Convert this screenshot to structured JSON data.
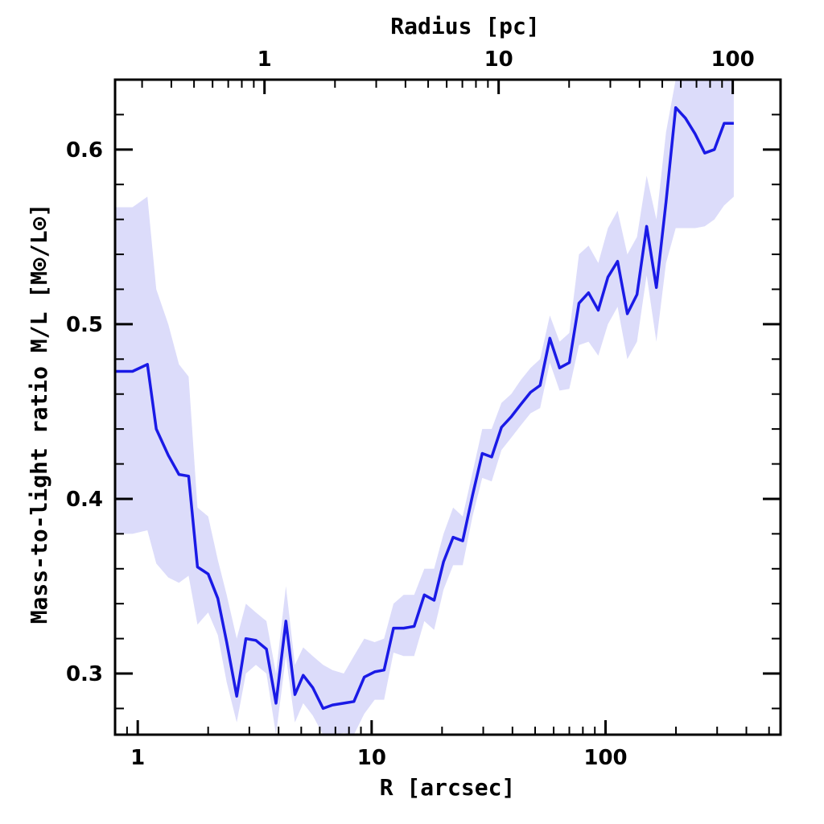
{
  "chart_data": {
    "type": "line",
    "xlabel": "R [arcsec]",
    "ylabel": "Mass-to-light ratio M/L [M⊙/L⊙]",
    "top_xlabel": "Radius [pc]",
    "xscale": "log",
    "xlim": [
      0.8,
      560
    ],
    "ylim": [
      0.265,
      0.64
    ],
    "top_xlim": [
      0.23,
      160
    ],
    "x_ticks": [
      1,
      10,
      100
    ],
    "x_tick_labels": [
      "1",
      "10",
      "100"
    ],
    "top_x_ticks": [
      1,
      10,
      100
    ],
    "top_x_tick_labels": [
      "1",
      "10",
      "100"
    ],
    "y_ticks": [
      0.3,
      0.4,
      0.5,
      0.6
    ],
    "y_tick_labels": [
      "0.3",
      "0.4",
      "0.5",
      "0.6"
    ],
    "colors": {
      "line": "#1a1ae6",
      "band": "#dcdcfa"
    },
    "series": [
      {
        "name": "M/L",
        "x": [
          0.8,
          0.95,
          1.1,
          1.2,
          1.35,
          1.5,
          1.65,
          1.8,
          2.0,
          2.2,
          2.4,
          2.65,
          2.9,
          3.2,
          3.55,
          3.9,
          4.3,
          4.7,
          5.1,
          5.6,
          6.2,
          6.8,
          7.6,
          8.4,
          9.3,
          10.3,
          11.3,
          12.4,
          13.7,
          15.2,
          16.8,
          18.5,
          20.3,
          22.3,
          24.5,
          27.0,
          29.7,
          32.6,
          35.9,
          39.5,
          43.4,
          47.8,
          52.5,
          57.8,
          63.6,
          70.0,
          77.0,
          84.6,
          93.1,
          102.4,
          112.6,
          123.9,
          136.3,
          149.9,
          164.9,
          181.4,
          199.5,
          219.5,
          241.4,
          265.6,
          292.1,
          321.3,
          353.5
        ],
        "y": [
          0.473,
          0.473,
          0.477,
          0.44,
          0.425,
          0.414,
          0.413,
          0.361,
          0.357,
          0.343,
          0.318,
          0.287,
          0.32,
          0.319,
          0.314,
          0.283,
          0.33,
          0.288,
          0.299,
          0.292,
          0.28,
          0.282,
          0.283,
          0.284,
          0.298,
          0.301,
          0.302,
          0.326,
          0.326,
          0.327,
          0.345,
          0.342,
          0.364,
          0.378,
          0.376,
          0.402,
          0.426,
          0.424,
          0.441,
          0.447,
          0.454,
          0.461,
          0.465,
          0.492,
          0.475,
          0.478,
          0.512,
          0.518,
          0.508,
          0.527,
          0.536,
          0.506,
          0.517,
          0.556,
          0.521,
          0.57,
          0.624,
          0.618,
          0.609,
          0.598,
          0.6,
          0.615,
          0.615
        ],
        "upper": [
          0.567,
          0.567,
          0.573,
          0.52,
          0.5,
          0.477,
          0.47,
          0.395,
          0.39,
          0.365,
          0.345,
          0.32,
          0.34,
          0.335,
          0.33,
          0.3,
          0.35,
          0.305,
          0.315,
          0.31,
          0.305,
          0.302,
          0.3,
          0.31,
          0.32,
          0.318,
          0.32,
          0.34,
          0.345,
          0.345,
          0.36,
          0.36,
          0.38,
          0.395,
          0.39,
          0.415,
          0.44,
          0.44,
          0.455,
          0.46,
          0.468,
          0.475,
          0.48,
          0.505,
          0.49,
          0.495,
          0.54,
          0.545,
          0.535,
          0.555,
          0.565,
          0.54,
          0.55,
          0.585,
          0.56,
          0.61,
          0.64,
          0.64,
          0.64,
          0.64,
          0.64,
          0.64,
          0.64
        ],
        "lower": [
          0.38,
          0.38,
          0.382,
          0.363,
          0.355,
          0.352,
          0.356,
          0.328,
          0.335,
          0.322,
          0.295,
          0.272,
          0.3,
          0.305,
          0.3,
          0.265,
          0.31,
          0.272,
          0.283,
          0.276,
          0.265,
          0.265,
          0.266,
          0.265,
          0.277,
          0.285,
          0.285,
          0.312,
          0.31,
          0.31,
          0.33,
          0.325,
          0.348,
          0.362,
          0.362,
          0.39,
          0.412,
          0.41,
          0.428,
          0.435,
          0.442,
          0.449,
          0.452,
          0.478,
          0.462,
          0.463,
          0.488,
          0.49,
          0.482,
          0.5,
          0.51,
          0.48,
          0.49,
          0.528,
          0.49,
          0.535,
          0.555,
          0.555,
          0.555,
          0.556,
          0.56,
          0.568,
          0.573
        ]
      }
    ]
  }
}
